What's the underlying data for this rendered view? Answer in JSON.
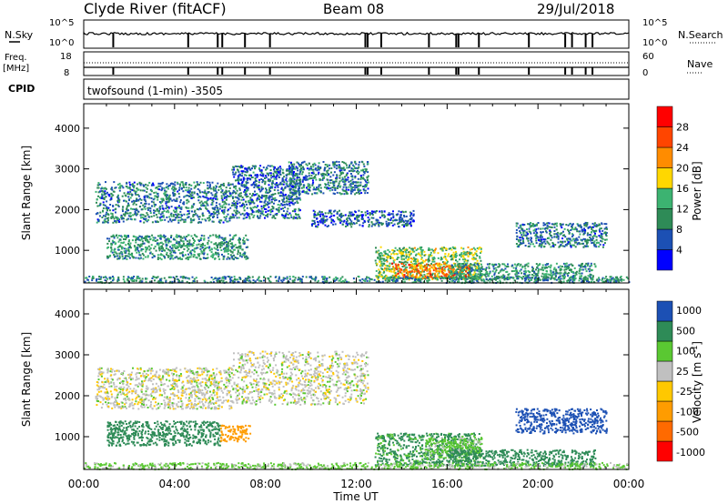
{
  "header": {
    "station": "Clyde River (fitACF)",
    "beam": "Beam 08",
    "date": "29/Jul/2018"
  },
  "noise_panel": {
    "left_label": "N.Sky",
    "right_label": "N.Search",
    "left_ticks": [
      "10^5",
      "10^0"
    ],
    "right_ticks": [
      "10^5",
      "10^0"
    ]
  },
  "freq_panel": {
    "left_label_line1": "Freq.",
    "left_label_line2": "[MHz]",
    "left_ticks": [
      "18",
      "8"
    ],
    "right_label": "Nave",
    "right_ticks": [
      "60",
      "0"
    ]
  },
  "cpid": {
    "label": "CPID",
    "program": "twofsound (1-min) -3505"
  },
  "x_axis": {
    "label": "Time UT",
    "ticks": [
      "00:00",
      "04:00",
      "08:00",
      "12:00",
      "16:00",
      "20:00",
      "00:00"
    ],
    "range_hours": [
      0,
      24
    ]
  },
  "colors": {
    "power": [
      "#0000ff",
      "#1c50b4",
      "#2e8b57",
      "#3cb371",
      "#ffd700",
      "#ff8c00",
      "#ff4500",
      "#ff0000"
    ],
    "velocity": [
      "#ff0000",
      "#ff6a00",
      "#ff9c00",
      "#ffc800",
      "#c0c0c0",
      "#5ac832",
      "#2e8b57",
      "#1c50b4"
    ],
    "ground": "#b4b4b4"
  },
  "chart_data": [
    {
      "type": "heatmap",
      "title": "",
      "xlabel": "",
      "ylabel": "Slant Range [km]",
      "x_ticks": [
        0,
        4,
        8,
        12,
        16,
        20,
        24
      ],
      "y_ticks": [
        1000,
        2000,
        3000,
        4000
      ],
      "ylim": [
        200,
        4600
      ],
      "colorbar": {
        "label": "Power [dB]",
        "ticks": [
          "4",
          "8",
          "12",
          "16",
          "20",
          "24",
          "28"
        ],
        "range": [
          0,
          30
        ]
      },
      "regions": [
        {
          "x0": 0.5,
          "x1": 6.5,
          "y0": 1700,
          "y1": 2700,
          "value": 8
        },
        {
          "x0": 1.0,
          "x1": 7.2,
          "y0": 800,
          "y1": 1400,
          "value": 10
        },
        {
          "x0": 6.5,
          "x1": 9.5,
          "y0": 1800,
          "y1": 3100,
          "value": 7
        },
        {
          "x0": 9.0,
          "x1": 12.5,
          "y0": 2400,
          "y1": 3200,
          "value": 8
        },
        {
          "x0": 10.0,
          "x1": 14.5,
          "y0": 1600,
          "y1": 2000,
          "value": 6
        },
        {
          "x0": 12.8,
          "x1": 17.5,
          "y0": 300,
          "y1": 1100,
          "value": 14
        },
        {
          "x0": 13.5,
          "x1": 17.0,
          "y0": 330,
          "y1": 700,
          "value": 22
        },
        {
          "x0": 16.0,
          "x1": 22.5,
          "y0": 300,
          "y1": 700,
          "value": 10
        },
        {
          "x0": 19.0,
          "x1": 23.0,
          "y0": 1100,
          "y1": 1700,
          "value": 8
        },
        {
          "x0": 0.0,
          "x1": 24.0,
          "y0": 220,
          "y1": 380,
          "value": 9
        }
      ]
    },
    {
      "type": "heatmap",
      "title": "",
      "xlabel": "Time UT",
      "ylabel": "Slant Range [km]",
      "x_ticks": [
        0,
        4,
        8,
        12,
        16,
        20,
        24
      ],
      "y_ticks": [
        1000,
        2000,
        3000,
        4000
      ],
      "ylim": [
        200,
        4600
      ],
      "colorbar": {
        "label": "Velocity [m s^-1]",
        "ticks": [
          "1000",
          "500",
          "100",
          "25",
          "-25",
          "-100",
          "-500",
          "-1000"
        ]
      },
      "regions": [
        {
          "x0": 0.5,
          "x1": 6.5,
          "y0": 1700,
          "y1": 2700,
          "value": 0
        },
        {
          "x0": 1.0,
          "x1": 6.0,
          "y0": 800,
          "y1": 1400,
          "value": 150
        },
        {
          "x0": 6.0,
          "x1": 7.3,
          "y0": 900,
          "y1": 1300,
          "value": -200
        },
        {
          "x0": 6.5,
          "x1": 12.5,
          "y0": 1800,
          "y1": 3100,
          "value": 0
        },
        {
          "x0": 12.8,
          "x1": 17.5,
          "y0": 300,
          "y1": 1100,
          "value": 120
        },
        {
          "x0": 15.0,
          "x1": 17.5,
          "y0": 500,
          "y1": 1000,
          "value": 50
        },
        {
          "x0": 16.0,
          "x1": 22.5,
          "y0": 300,
          "y1": 700,
          "value": 150
        },
        {
          "x0": 19.0,
          "x1": 23.0,
          "y0": 1100,
          "y1": 1700,
          "value": 600
        },
        {
          "x0": 0.0,
          "x1": 24.0,
          "y0": 220,
          "y1": 380,
          "value": 40
        }
      ]
    }
  ]
}
